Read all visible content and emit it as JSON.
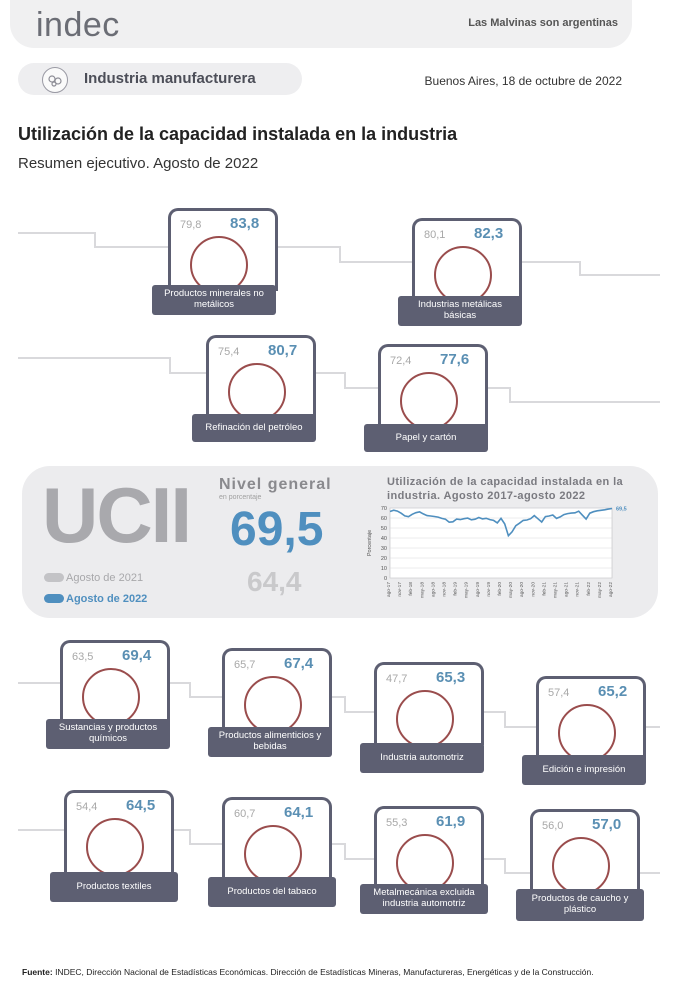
{
  "header": {
    "logo": "indec",
    "slogan": "Las Malvinas son argentinas",
    "section": "Industria manufacturera",
    "date": "Buenos Aires, 18 de octubre de 2022",
    "title": "Utilización de la capacidad instalada en la industria",
    "subtitle": "Resumen ejecutivo. Agosto de 2022"
  },
  "sectors": [
    {
      "name": "Productos minerales no metálicos",
      "prev": "79,8",
      "curr": "83,8",
      "icon": "cement-mixer-icon"
    },
    {
      "name": "Industrias metálicas básicas",
      "prev": "80,1",
      "curr": "82,3",
      "icon": "steel-coil-icon"
    },
    {
      "name": "Refinación del petróleo",
      "prev": "75,4",
      "curr": "80,7",
      "icon": "refinery-icon"
    },
    {
      "name": "Papel y cartón",
      "prev": "72,4",
      "curr": "77,6",
      "icon": "cardboard-box-icon"
    },
    {
      "name": "Sustancias y productos químicos",
      "prev": "63,5",
      "curr": "69,4",
      "icon": "flask-icon"
    },
    {
      "name": "Productos alimenticios y bebidas",
      "prev": "65,7",
      "curr": "67,4",
      "icon": "bottle-bread-icon"
    },
    {
      "name": "Industria automotriz",
      "prev": "47,7",
      "curr": "65,3",
      "icon": "car-icon"
    },
    {
      "name": "Edición e impresión",
      "prev": "57,4",
      "curr": "65,2",
      "icon": "paper-roll-icon"
    },
    {
      "name": "Productos textiles",
      "prev": "54,4",
      "curr": "64,5",
      "icon": "fabric-icon"
    },
    {
      "name": "Productos del tabaco",
      "prev": "60,7",
      "curr": "64,1",
      "icon": "pipe-icon"
    },
    {
      "name": "Metalmecánica excluida industria automotriz",
      "prev": "55,3",
      "curr": "61,9",
      "icon": "gears-icon"
    },
    {
      "name": "Productos de caucho y plástico",
      "prev": "56,0",
      "curr": "57,0",
      "icon": "tire-stack-icon"
    }
  ],
  "summary": {
    "acronym": "UCII",
    "nivel_label": "Nivel general",
    "unit": "en porcentaje",
    "current": "69,5",
    "previous": "64,4",
    "legend_prev": "Agosto de 2021",
    "legend_curr": "Agosto de 2022",
    "colors": {
      "current": "#4f8fbf",
      "previous": "#c3c3c6",
      "dark": "#5d5f72"
    }
  },
  "chart_data": {
    "type": "line",
    "title": "Utilización de la capacidad instalada en la industria. Agosto 2017-agosto 2022",
    "ylabel": "Porcentaje",
    "ylim": [
      0,
      70
    ],
    "yticks": [
      0,
      10,
      20,
      30,
      40,
      50,
      60,
      70
    ],
    "end_label": "69,5",
    "x": [
      "ago-17",
      "sep-17",
      "oct-17",
      "nov-17",
      "dic-17",
      "ene-18",
      "feb-18",
      "mar-18",
      "abr-18",
      "may-18",
      "jun-18",
      "jul-18",
      "ago-18",
      "sep-18",
      "oct-18",
      "nov-18",
      "dic-18",
      "ene-19",
      "feb-19",
      "mar-19",
      "abr-19",
      "may-19",
      "jun-19",
      "jul-19",
      "ago-19",
      "sep-19",
      "oct-19",
      "nov-19",
      "dic-19",
      "ene-20",
      "feb-20",
      "mar-20",
      "abr-20",
      "may-20",
      "jun-20",
      "jul-20",
      "ago-20",
      "sep-20",
      "oct-20",
      "nov-20",
      "dic-20",
      "ene-21",
      "feb-21",
      "mar-21",
      "abr-21",
      "may-21",
      "jun-21",
      "jul-21",
      "ago-21",
      "sep-21",
      "oct-21",
      "nov-21",
      "dic-21",
      "ene-22",
      "feb-22",
      "mar-22",
      "abr-22",
      "may-22",
      "jun-22",
      "jul-22",
      "ago-22"
    ],
    "xtick_labels": [
      "ago-17",
      "nov-17",
      "feb-18",
      "may-18",
      "ago-18",
      "nov-18",
      "feb-19",
      "may-19",
      "ago-19",
      "nov-19",
      "feb-20",
      "may-20",
      "ago-20",
      "nov-20",
      "feb-21",
      "may-21",
      "ago-21",
      "nov-21",
      "feb-22",
      "may-22",
      "ago-22"
    ],
    "values": [
      66.5,
      67.8,
      66.9,
      64.8,
      62.1,
      61.3,
      63.7,
      65.3,
      66.1,
      64.1,
      62.4,
      62.0,
      61.5,
      60.9,
      59.6,
      58.8,
      55.8,
      56.2,
      58.9,
      58.4,
      59.3,
      59.9,
      58.2,
      58.8,
      60.5,
      59.1,
      59.7,
      58.4,
      57.6,
      55.1,
      59.6,
      54.1,
      42.3,
      46.2,
      52.3,
      54.8,
      57.6,
      58.0,
      59.3,
      62.4,
      59.2,
      56.0,
      61.4,
      62.0,
      63.0,
      59.6,
      61.1,
      63.4,
      64.4,
      64.9,
      65.2,
      66.8,
      62.8,
      58.9,
      64.8,
      66.3,
      67.2,
      67.7,
      68.2,
      68.9,
      69.5
    ]
  },
  "footer": {
    "source_label": "Fuente:",
    "source_text": " INDEC, Dirección Nacional de Estadísticas Económicas. Dirección de Estadísticas Mineras, Manufactureras, Energéticas y de la Construcción."
  }
}
